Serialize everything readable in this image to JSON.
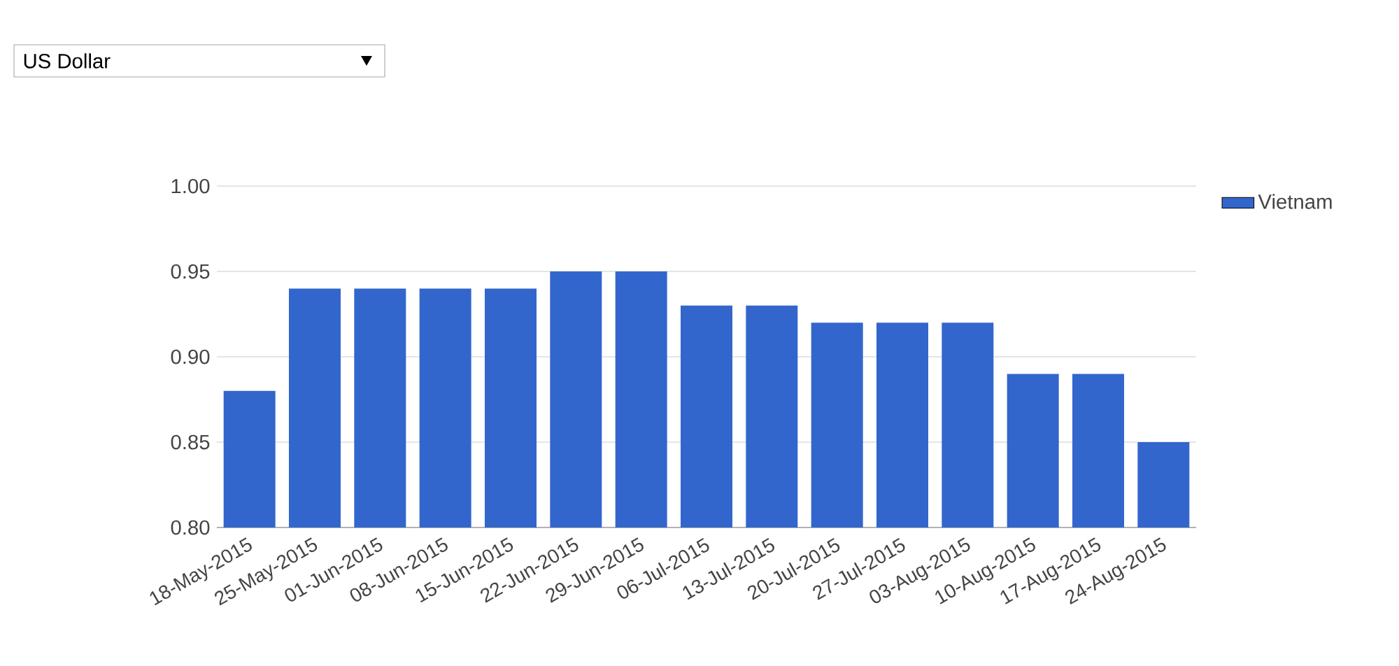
{
  "chart_data": {
    "type": "bar",
    "annotations": [
      "US Dollar"
    ],
    "categories": [
      "18-May-2015",
      "25-May-2015",
      "01-Jun-2015",
      "08-Jun-2015",
      "15-Jun-2015",
      "22-Jun-2015",
      "29-Jun-2015",
      "06-Jul-2015",
      "13-Jul-2015",
      "20-Jul-2015",
      "27-Jul-2015",
      "03-Aug-2015",
      "10-Aug-2015",
      "17-Aug-2015",
      "24-Aug-2015"
    ],
    "series": [
      {
        "name": "Vietnam",
        "color": "#3366cc",
        "values": [
          0.88,
          0.94,
          0.94,
          0.94,
          0.94,
          0.95,
          0.95,
          0.93,
          0.93,
          0.92,
          0.92,
          0.92,
          0.89,
          0.89,
          0.85
        ]
      }
    ],
    "ylim": [
      0.8,
      1.0
    ],
    "yticks": [
      {
        "value": 0.8,
        "label": "0.80"
      },
      {
        "value": 0.85,
        "label": "0.85"
      },
      {
        "value": 0.9,
        "label": "0.90"
      },
      {
        "value": 0.95,
        "label": "0.95"
      },
      {
        "value": 1.0,
        "label": "1.00"
      }
    ],
    "grid": "y",
    "legend": "top right"
  }
}
